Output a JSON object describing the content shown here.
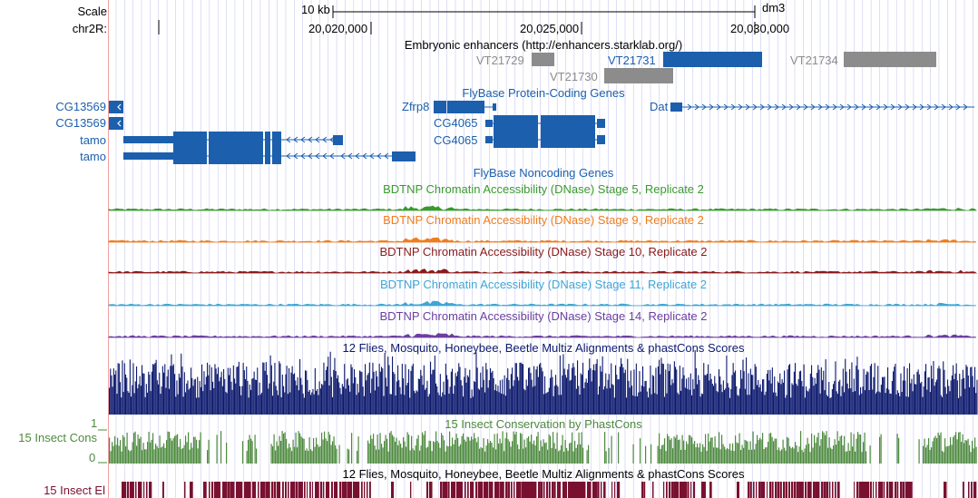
{
  "ruler": {
    "scale_label": "Scale",
    "chrom_label": "chr2R:",
    "scale_bar_text": "10 kb",
    "assembly": "dm3",
    "positions": [
      "20,020,000",
      "20,025,000",
      "20,030,000"
    ]
  },
  "tracks": {
    "enhancers": {
      "title": "Embryonic enhancers (http://enhancers.starklab.org/)",
      "items": [
        {
          "name": "VT21729",
          "color": "#8c8c8c"
        },
        {
          "name": "VT21731",
          "color": "#1b5fad"
        },
        {
          "name": "VT21730",
          "color": "#8c8c8c"
        },
        {
          "name": "VT21734",
          "color": "#8c8c8c"
        }
      ]
    },
    "protein_coding": {
      "title": "FlyBase Protein-Coding Genes",
      "genes": [
        "CG13569",
        "CG13569",
        "tamo",
        "tamo",
        "Zfrp8",
        "CG4065",
        "CG4065",
        "Dat"
      ]
    },
    "noncoding": {
      "title": "FlyBase Noncoding Genes"
    },
    "dnase": [
      {
        "title": "BDTNP Chromatin Accessibility (DNase) Stage 5, Replicate 2",
        "color": "#3a9a2e"
      },
      {
        "title": "BDTNP Chromatin Accessibility (DNase) Stage 9, Replicate 2",
        "color": "#f07d1e"
      },
      {
        "title": "BDTNP Chromatin Accessibility (DNase) Stage 10, Replicate 2",
        "color": "#8b1a1a"
      },
      {
        "title": "BDTNP Chromatin Accessibility (DNase) Stage 11, Replicate 2",
        "color": "#3ea6d6"
      },
      {
        "title": "BDTNP Chromatin Accessibility (DNase) Stage 14, Replicate 2",
        "color": "#6b3fa0"
      }
    ],
    "multiz": {
      "title": "12 Flies, Mosquito, Honeybee, Beetle Multiz Alignments & phastCons Scores",
      "color": "#0d1a6e"
    },
    "phastcons": {
      "title": "15 Insect Conservation by PhastCons",
      "side_label": "15 Insect Cons",
      "y_max": "1",
      "y_min": "0",
      "color": "#4d8a3e"
    },
    "elements": {
      "title": "12 Flies, Mosquito, Honeybee, Beetle Multiz Alignments & phastCons Scores",
      "side_label": "15 Insect El",
      "color": "#7a1030"
    }
  },
  "colors": {
    "gene_blue": "#1b5fad",
    "grid_line": "#c9c9f0",
    "left_border": "#f4a0a0"
  }
}
